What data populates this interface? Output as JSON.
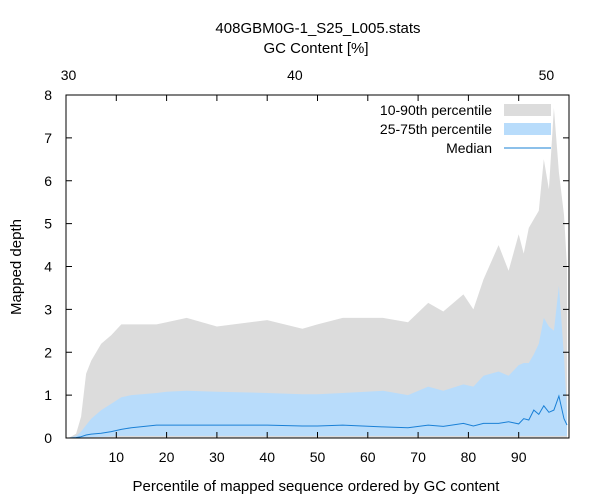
{
  "chart_data": {
    "type": "area",
    "title": "408GBM0G-1_S25_L005.stats",
    "xlabel": "Percentile of mapped sequence ordered by GC content",
    "ylabel": "Mapped depth",
    "x2label": "GC Content [%]",
    "xlim": [
      0,
      100
    ],
    "ylim": [
      0,
      8
    ],
    "x_ticks": [
      10,
      20,
      30,
      40,
      50,
      60,
      70,
      80,
      90
    ],
    "y_ticks": [
      0,
      1,
      2,
      3,
      4,
      5,
      6,
      7,
      8
    ],
    "x2_ticks": [
      {
        "label": "30",
        "x": 0.5
      },
      {
        "label": "40",
        "x": 45.5
      },
      {
        "label": "50",
        "x": 95.5
      }
    ],
    "legend_position": "top-right",
    "series": [
      {
        "name": "10-90th percentile",
        "color": "#dcdcdc",
        "x": [
          0.5,
          2,
          3,
          4,
          5,
          7,
          9,
          11,
          13,
          18,
          20,
          24,
          30,
          40,
          47,
          50,
          55,
          63,
          68,
          72,
          75,
          79,
          81,
          83,
          86,
          88,
          90,
          91,
          92,
          93,
          94,
          95,
          96,
          97,
          98,
          99,
          99.6
        ],
        "low": [
          0,
          0,
          0,
          0,
          0,
          0.01,
          0.01,
          0.01,
          0.01,
          0.01,
          0.01,
          0.01,
          0.01,
          0.01,
          0.01,
          0.01,
          0.01,
          0.01,
          0.01,
          0.01,
          0.01,
          0.01,
          0.01,
          0.01,
          0.01,
          0.01,
          0.01,
          0.01,
          0.01,
          0.01,
          0.01,
          0.01,
          0.01,
          0.01,
          0.01,
          0.01,
          0.01
        ],
        "high": [
          0,
          0.1,
          0.5,
          1.5,
          1.8,
          2.2,
          2.4,
          2.65,
          2.65,
          2.65,
          2.7,
          2.8,
          2.6,
          2.75,
          2.55,
          2.65,
          2.8,
          2.8,
          2.7,
          3.15,
          2.95,
          3.35,
          3.0,
          3.7,
          4.5,
          3.9,
          4.75,
          4.3,
          4.9,
          5.1,
          5.3,
          6.5,
          5.8,
          7.7,
          6.2,
          5.2,
          4.0
        ]
      },
      {
        "name": "25-75th percentile",
        "color": "#b8dcfb",
        "x": [
          0.5,
          2,
          3,
          4,
          5,
          7,
          9,
          11,
          13,
          18,
          20,
          24,
          30,
          40,
          47,
          50,
          55,
          63,
          68,
          72,
          75,
          79,
          81,
          83,
          86,
          88,
          90,
          91,
          92,
          93,
          94,
          95,
          96,
          97,
          98,
          99,
          99.6
        ],
        "low": [
          0,
          0,
          0,
          0.01,
          0.02,
          0.03,
          0.04,
          0.05,
          0.05,
          0.05,
          0.05,
          0.05,
          0.05,
          0.05,
          0.05,
          0.05,
          0.05,
          0.05,
          0.05,
          0.05,
          0.05,
          0.05,
          0.05,
          0.05,
          0.05,
          0.05,
          0.05,
          0.05,
          0.05,
          0.05,
          0.05,
          0.05,
          0.05,
          0.05,
          0.05,
          0.05,
          0.05
        ],
        "high": [
          0,
          0.05,
          0.15,
          0.3,
          0.45,
          0.65,
          0.8,
          0.95,
          1.0,
          1.05,
          1.08,
          1.1,
          1.08,
          1.05,
          1.02,
          1.02,
          1.05,
          1.1,
          1.0,
          1.2,
          1.1,
          1.25,
          1.2,
          1.45,
          1.55,
          1.45,
          1.7,
          1.75,
          1.75,
          1.95,
          2.2,
          2.8,
          2.6,
          2.5,
          3.55,
          1.9,
          0.6
        ]
      },
      {
        "name": "Median",
        "color": "#1a80d6",
        "x": [
          0.5,
          2,
          3,
          4,
          5,
          7,
          9,
          11,
          13,
          18,
          20,
          24,
          30,
          40,
          47,
          50,
          55,
          63,
          68,
          72,
          75,
          79,
          81,
          83,
          86,
          88,
          90,
          91,
          92,
          93,
          94,
          95,
          96,
          97,
          98,
          99,
          99.6
        ],
        "y": [
          0,
          0.01,
          0.03,
          0.07,
          0.09,
          0.11,
          0.15,
          0.2,
          0.24,
          0.3,
          0.3,
          0.3,
          0.3,
          0.3,
          0.28,
          0.28,
          0.3,
          0.26,
          0.24,
          0.3,
          0.27,
          0.34,
          0.28,
          0.34,
          0.34,
          0.38,
          0.33,
          0.45,
          0.42,
          0.65,
          0.55,
          0.75,
          0.6,
          0.65,
          0.98,
          0.45,
          0.3
        ]
      }
    ]
  }
}
